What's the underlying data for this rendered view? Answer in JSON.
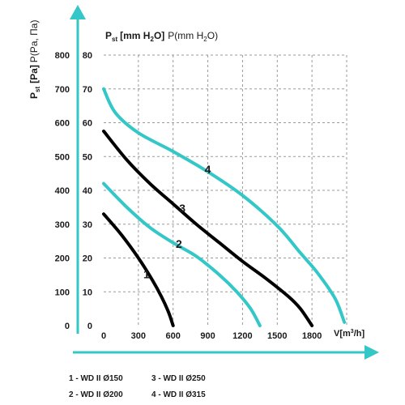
{
  "chart_data": {
    "type": "line",
    "title_parts": {
      "p": "P",
      "sub": "st",
      "unit_bold": "[mm H",
      "unit_sub": "2",
      "unit_end": "O]",
      "tail": "P(mm H",
      "tail_sub": "2",
      "tail_end": "O)"
    },
    "ylabel_parts": {
      "p": "P",
      "sub": "st",
      "unit": "[Pa]",
      "tail": "P(Pa, Па)"
    },
    "xlabel_parts": {
      "v": "V[m",
      "sup": "3",
      "end": "/h]"
    },
    "x_ticks": [
      0,
      300,
      600,
      900,
      1200,
      1500,
      1800
    ],
    "y_ticks_pa": [
      0,
      100,
      200,
      300,
      400,
      500,
      600,
      700,
      800
    ],
    "y_ticks_mm": [
      0,
      10,
      20,
      30,
      40,
      50,
      60,
      70,
      80
    ],
    "xlim": [
      0,
      2100
    ],
    "ylim": [
      0,
      800
    ],
    "grid": true,
    "series": [
      {
        "name": "1",
        "color": "#000000",
        "points": [
          [
            0,
            330
          ],
          [
            150,
            270
          ],
          [
            300,
            200
          ],
          [
            420,
            135
          ],
          [
            500,
            85
          ],
          [
            560,
            40
          ],
          [
            600,
            0
          ]
        ]
      },
      {
        "name": "2",
        "color": "#33c7c7",
        "points": [
          [
            0,
            420
          ],
          [
            200,
            350
          ],
          [
            400,
            290
          ],
          [
            600,
            245
          ],
          [
            800,
            205
          ],
          [
            1000,
            150
          ],
          [
            1150,
            100
          ],
          [
            1270,
            50
          ],
          [
            1350,
            0
          ]
        ]
      },
      {
        "name": "3",
        "color": "#000000",
        "points": [
          [
            0,
            575
          ],
          [
            200,
            490
          ],
          [
            400,
            420
          ],
          [
            600,
            360
          ],
          [
            800,
            300
          ],
          [
            1000,
            245
          ],
          [
            1200,
            190
          ],
          [
            1400,
            140
          ],
          [
            1600,
            85
          ],
          [
            1700,
            50
          ],
          [
            1800,
            0
          ]
        ]
      },
      {
        "name": "4",
        "color": "#33c7c7",
        "points": [
          [
            0,
            700
          ],
          [
            100,
            630
          ],
          [
            300,
            570
          ],
          [
            600,
            515
          ],
          [
            900,
            455
          ],
          [
            1200,
            385
          ],
          [
            1500,
            295
          ],
          [
            1700,
            215
          ],
          [
            1850,
            155
          ],
          [
            2000,
            80
          ],
          [
            2080,
            10
          ]
        ]
      }
    ],
    "curve_labels": [
      {
        "text": "1",
        "x": 370,
        "y": 140
      },
      {
        "text": "2",
        "x": 650,
        "y": 230
      },
      {
        "text": "3",
        "x": 680,
        "y": 335
      },
      {
        "text": "4",
        "x": 900,
        "y": 450
      }
    ],
    "legend": [
      "1 - WD II Ø150",
      "2 - WD II Ø200",
      "3 - WD II Ø250",
      "4 - WD II Ø315"
    ]
  }
}
